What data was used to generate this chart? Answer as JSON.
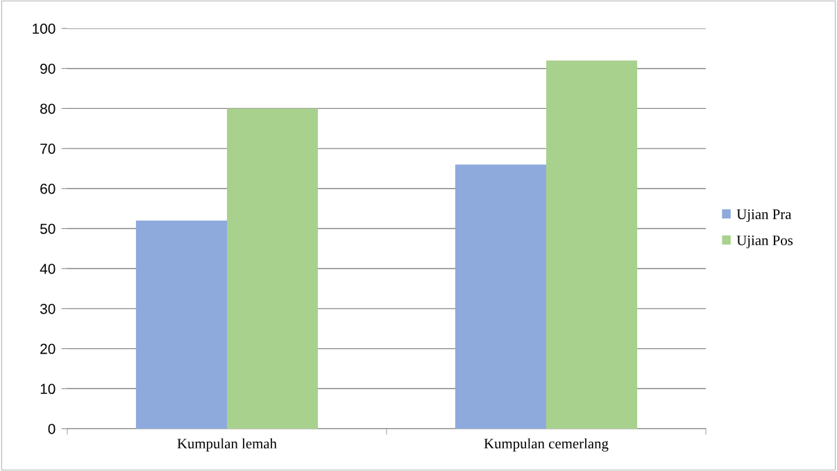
{
  "chart_data": {
    "type": "bar",
    "categories": [
      "Kumpulan lemah",
      "Kumpulan cemerlang"
    ],
    "series": [
      {
        "name": "Ujian Pra",
        "color": "#8eaadc",
        "values": [
          52,
          66
        ]
      },
      {
        "name": "Ujian Pos",
        "color": "#a9d18e",
        "values": [
          80,
          92
        ]
      }
    ],
    "ylim": [
      0,
      100
    ],
    "yticks": [
      0,
      10,
      20,
      30,
      40,
      50,
      60,
      70,
      80,
      90,
      100
    ],
    "grid": "y",
    "legend": "right"
  }
}
